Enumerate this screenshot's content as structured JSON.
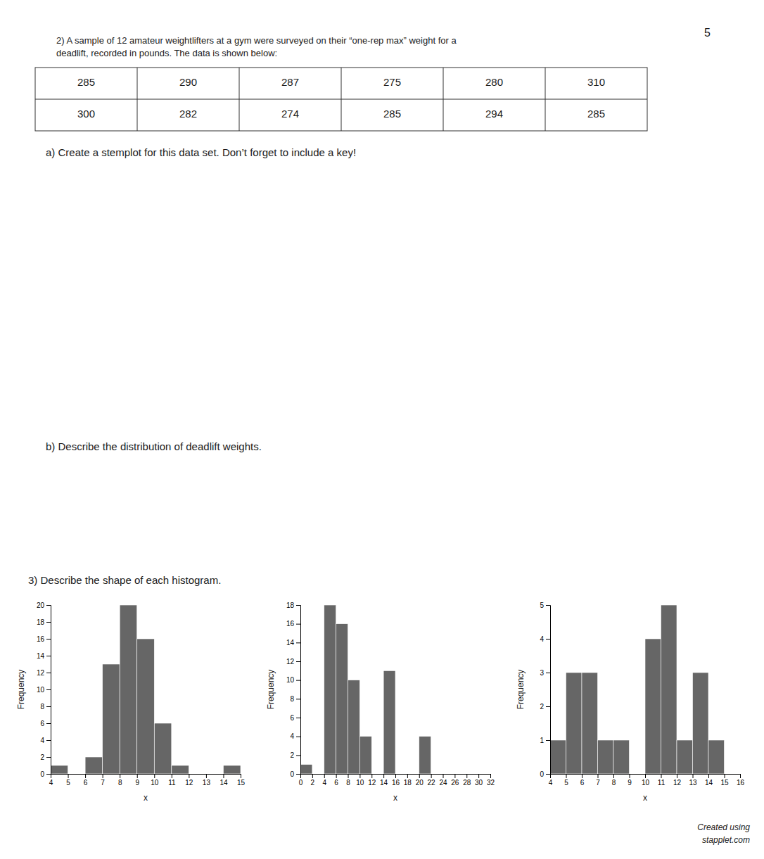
{
  "page_number": "5",
  "title": [
    "2) A sample of 12 amateur weightlifters at a gym were surveyed on their “one-rep max” weight for a",
    "deadlift, recorded in pounds. The data is shown below:"
  ],
  "table": [
    [
      285,
      290,
      287,
      275,
      280,
      310
    ],
    [
      300,
      282,
      274,
      285,
      294,
      285
    ]
  ],
  "annotations": [
    "a)  Create a stemplot for this data set. Don’t forget to include a key!",
    "b)  Describe the distribution of deadlift weights.",
    "3) Describe the shape of each histogram."
  ],
  "credit": [
    "Created using",
    "stapplet.com"
  ],
  "chart_data": [
    {
      "type": "histogram",
      "x_label": "x",
      "y_label": "Frequency",
      "color": "#666666",
      "bins": [
        4,
        5,
        6,
        7,
        8,
        9,
        10,
        11,
        12,
        13,
        14,
        15
      ],
      "values": [
        1,
        0,
        2,
        13,
        20,
        16,
        6,
        1,
        0,
        0,
        1
      ],
      "xlim": [
        4,
        15
      ],
      "xticks": [
        4,
        5,
        6,
        7,
        8,
        9,
        10,
        11,
        12,
        13,
        14,
        15
      ],
      "ylim": [
        0,
        20
      ],
      "yticks": [
        0,
        2,
        4,
        6,
        8,
        10,
        12,
        14,
        16,
        18,
        20
      ],
      "grid": false
    },
    {
      "type": "histogram",
      "x_label": "x",
      "y_label": "Frequency",
      "color": "#666666",
      "bins": [
        0,
        2,
        4,
        6,
        8,
        10,
        12,
        14,
        16,
        18,
        20,
        22
      ],
      "values": [
        1,
        0,
        18,
        16,
        10,
        4,
        0,
        11,
        0,
        0,
        4
      ],
      "xlim": [
        0,
        32
      ],
      "xticks": [
        0,
        2,
        4,
        6,
        8,
        10,
        12,
        14,
        16,
        18,
        20,
        22,
        24,
        26,
        28,
        30,
        32
      ],
      "ylim": [
        0,
        18
      ],
      "yticks": [
        0,
        2,
        4,
        6,
        8,
        10,
        12,
        14,
        16,
        18
      ],
      "grid": false
    },
    {
      "type": "histogram",
      "x_label": "x",
      "y_label": "Frequency",
      "color": "#666666",
      "bins": [
        4,
        5,
        6,
        7,
        8,
        9,
        10,
        11,
        12,
        13,
        14,
        15
      ],
      "values": [
        1,
        3,
        3,
        1,
        1,
        0,
        4,
        5,
        1,
        3,
        1
      ],
      "xlim": [
        4,
        16
      ],
      "xticks": [
        4,
        5,
        6,
        7,
        8,
        9,
        10,
        11,
        12,
        13,
        14,
        15,
        16
      ],
      "ylim": [
        0,
        5
      ],
      "yticks": [
        0,
        1,
        2,
        3,
        4,
        5
      ],
      "grid": false
    }
  ]
}
